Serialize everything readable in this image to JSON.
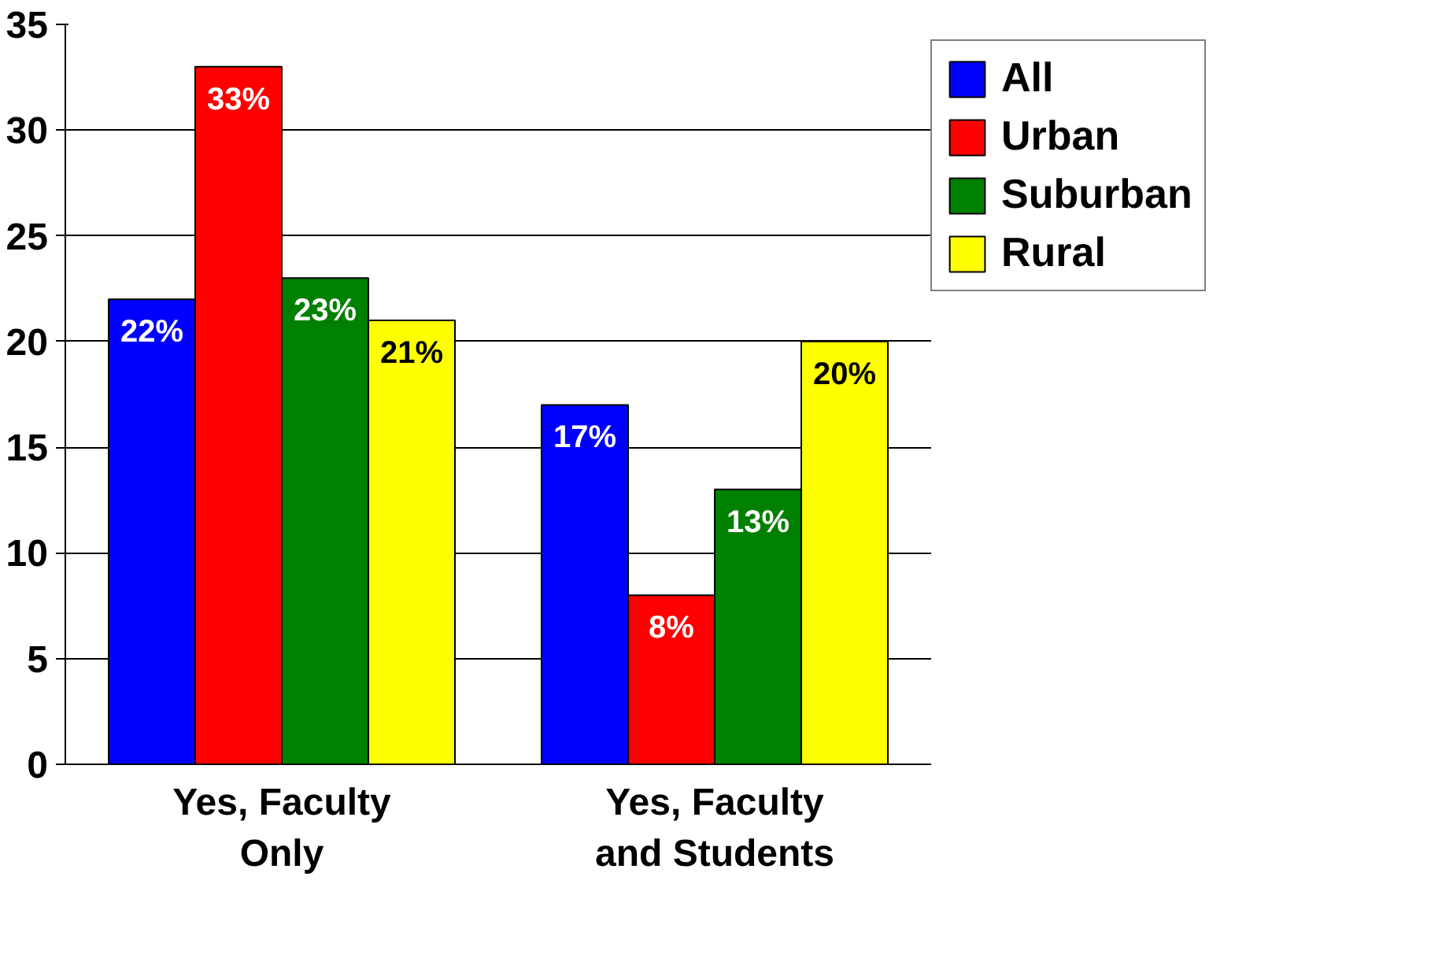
{
  "chart_data": {
    "type": "bar",
    "categories": [
      "Yes, Faculty Only",
      "Yes, Faculty and Students"
    ],
    "series": [
      {
        "name": "All",
        "color": "#0000ff",
        "values": [
          22,
          17
        ],
        "value_labels": [
          "22%",
          "17%"
        ]
      },
      {
        "name": "Urban",
        "color": "#ff0000",
        "values": [
          33,
          8
        ],
        "value_labels": [
          "33%",
          "8%"
        ]
      },
      {
        "name": "Suburban",
        "color": "#008000",
        "values": [
          23,
          13
        ],
        "value_labels": [
          "23%",
          "13%"
        ]
      },
      {
        "name": "Rural",
        "color": "#ffff00",
        "values": [
          21,
          20
        ],
        "value_labels": [
          "21%",
          "20%"
        ]
      }
    ],
    "ylim": [
      0,
      35
    ],
    "yticks": [
      0,
      5,
      10,
      15,
      20,
      25,
      30,
      35
    ],
    "grid": "y",
    "legend": "right"
  }
}
